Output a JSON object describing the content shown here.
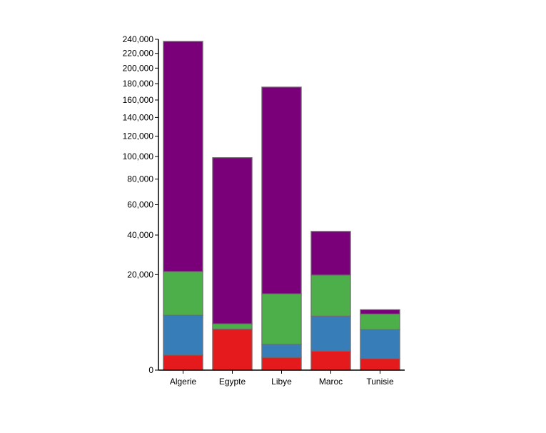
{
  "chart_data": {
    "type": "bar",
    "stacked": true,
    "scale": "sqrt",
    "categories": [
      "Algerie",
      "Egypte",
      "Libye",
      "Maroc",
      "Tunisie"
    ],
    "series": [
      {
        "values": [
          500,
          3700,
          360,
          800,
          300
        ]
      },
      {
        "values": [
          6100,
          0,
          1100,
          5600,
          3300
        ]
      },
      {
        "values": [
          14700,
          1000,
          11300,
          13400,
          3300
        ]
      },
      {
        "values": [
          215700,
          94300,
          162900,
          22400,
          1100
        ]
      }
    ],
    "y_ticks": [
      0,
      20000,
      40000,
      60000,
      80000,
      100000,
      120000,
      140000,
      160000,
      180000,
      200000,
      220000,
      240000
    ],
    "y_tick_labels": [
      "0",
      "20,000",
      "40,000",
      "60,000",
      "80,000",
      "100,000",
      "120,000",
      "140,000",
      "160,000",
      "180,000",
      "200,000",
      "220,000",
      "240,000"
    ],
    "ylim": [
      0,
      240000
    ],
    "colors": [
      "#e41a1c",
      "#377eb8",
      "#4daf4a",
      "#7a007a"
    ],
    "grid": false,
    "legend": "none"
  }
}
